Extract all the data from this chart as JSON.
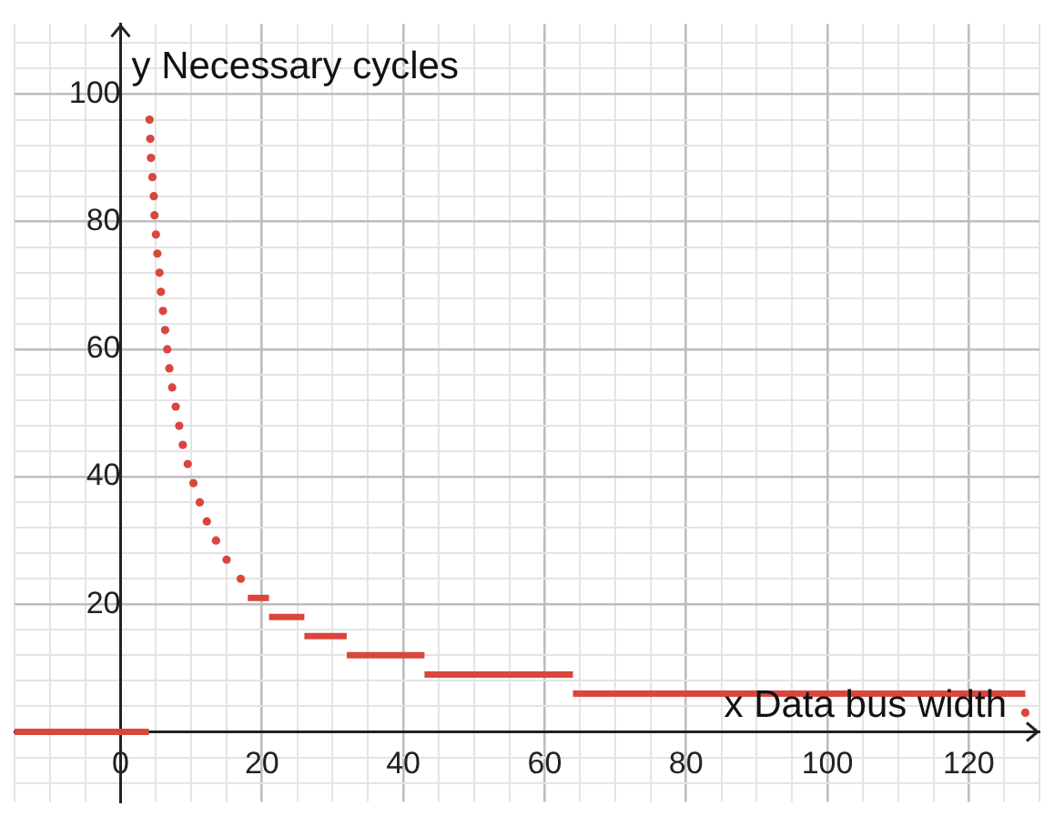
{
  "chart_data": {
    "type": "line",
    "xlabel": "x Data bus width",
    "ylabel": "y Necessary cycles",
    "xlim": [
      -15,
      130
    ],
    "ylim": [
      -11,
      111
    ],
    "xticks": [
      {
        "value": -15,
        "label": null
      },
      {
        "value": -10,
        "label": null
      },
      {
        "value": -5,
        "label": null
      },
      0,
      {
        "value": 5,
        "label": null
      },
      {
        "value": 10,
        "label": null
      },
      {
        "value": 15,
        "label": null
      },
      20,
      {
        "value": 25,
        "label": null
      },
      {
        "value": 30,
        "label": null
      },
      {
        "value": 35,
        "label": null
      },
      40,
      {
        "value": 45,
        "label": null
      },
      {
        "value": 50,
        "label": null
      },
      {
        "value": 55,
        "label": null
      },
      60,
      {
        "value": 65,
        "label": null
      },
      {
        "value": 70,
        "label": null
      },
      {
        "value": 75,
        "label": null
      },
      80,
      {
        "value": 85,
        "label": null
      },
      {
        "value": 90,
        "label": null
      },
      {
        "value": 95,
        "label": null
      },
      100,
      {
        "value": 105,
        "label": null
      },
      {
        "value": 110,
        "label": null
      },
      {
        "value": 115,
        "label": null
      },
      120,
      {
        "value": 125,
        "label": null
      },
      {
        "value": 130,
        "label": null
      }
    ],
    "yticks": [
      {
        "value": -8,
        "label": null
      },
      {
        "value": -4,
        "label": null
      },
      {
        "value": 0,
        "label": null
      },
      {
        "value": 4,
        "label": null
      },
      {
        "value": 8,
        "label": null
      },
      {
        "value": 12,
        "label": null
      },
      {
        "value": 16,
        "label": null
      },
      20,
      {
        "value": 24,
        "label": null
      },
      {
        "value": 28,
        "label": null
      },
      {
        "value": 32,
        "label": null
      },
      {
        "value": 36,
        "label": null
      },
      40,
      {
        "value": 44,
        "label": null
      },
      {
        "value": 48,
        "label": null
      },
      {
        "value": 52,
        "label": null
      },
      {
        "value": 56,
        "label": null
      },
      60,
      {
        "value": 64,
        "label": null
      },
      {
        "value": 68,
        "label": null
      },
      {
        "value": 72,
        "label": null
      },
      {
        "value": 76,
        "label": null
      },
      80,
      {
        "value": 84,
        "label": null
      },
      {
        "value": 88,
        "label": null
      },
      {
        "value": 92,
        "label": null
      },
      {
        "value": 96,
        "label": null
      },
      100,
      {
        "value": 104,
        "label": null
      },
      {
        "value": 108,
        "label": null
      }
    ],
    "grid": true,
    "legend": false,
    "marker": "none",
    "line_style": "solid",
    "series": [
      {
        "color": "#d9463e",
        "x": [
          -15,
          4
        ],
        "values": [
          0,
          0
        ]
      },
      {
        "type": "scatter",
        "color": "#d9463e",
        "marker": "circle",
        "x": [
          4.1,
          4.2,
          4.3,
          4.5,
          4.7,
          4.8,
          5,
          5.2,
          5.5,
          5.7,
          6,
          6.3,
          6.6,
          6.9,
          7.3,
          7.8,
          8.3,
          8.8,
          9.5,
          10.3,
          11.2,
          12.2,
          13.5,
          15,
          17
        ],
        "values": [
          96,
          93,
          90,
          87,
          84,
          81,
          78,
          75,
          72,
          69,
          66,
          63,
          60,
          57,
          54,
          51,
          48,
          45,
          42,
          39,
          36,
          33,
          30,
          27,
          24
        ]
      },
      {
        "color": "#d9463e",
        "x": [
          18,
          21
        ],
        "values": [
          21,
          21
        ]
      },
      {
        "color": "#d9463e",
        "x": [
          21,
          26
        ],
        "values": [
          18,
          18
        ]
      },
      {
        "color": "#d9463e",
        "x": [
          26,
          32
        ],
        "values": [
          15,
          15
        ]
      },
      {
        "color": "#d9463e",
        "x": [
          32,
          43
        ],
        "values": [
          12,
          12
        ]
      },
      {
        "color": "#d9463e",
        "x": [
          43,
          64
        ],
        "values": [
          9,
          9
        ]
      },
      {
        "color": "#d9463e",
        "x": [
          64,
          128
        ],
        "values": [
          6,
          6
        ]
      },
      {
        "type": "scatter",
        "color": "#d9463e",
        "marker": "circle",
        "x": [
          128
        ],
        "values": [
          3
        ]
      }
    ]
  }
}
